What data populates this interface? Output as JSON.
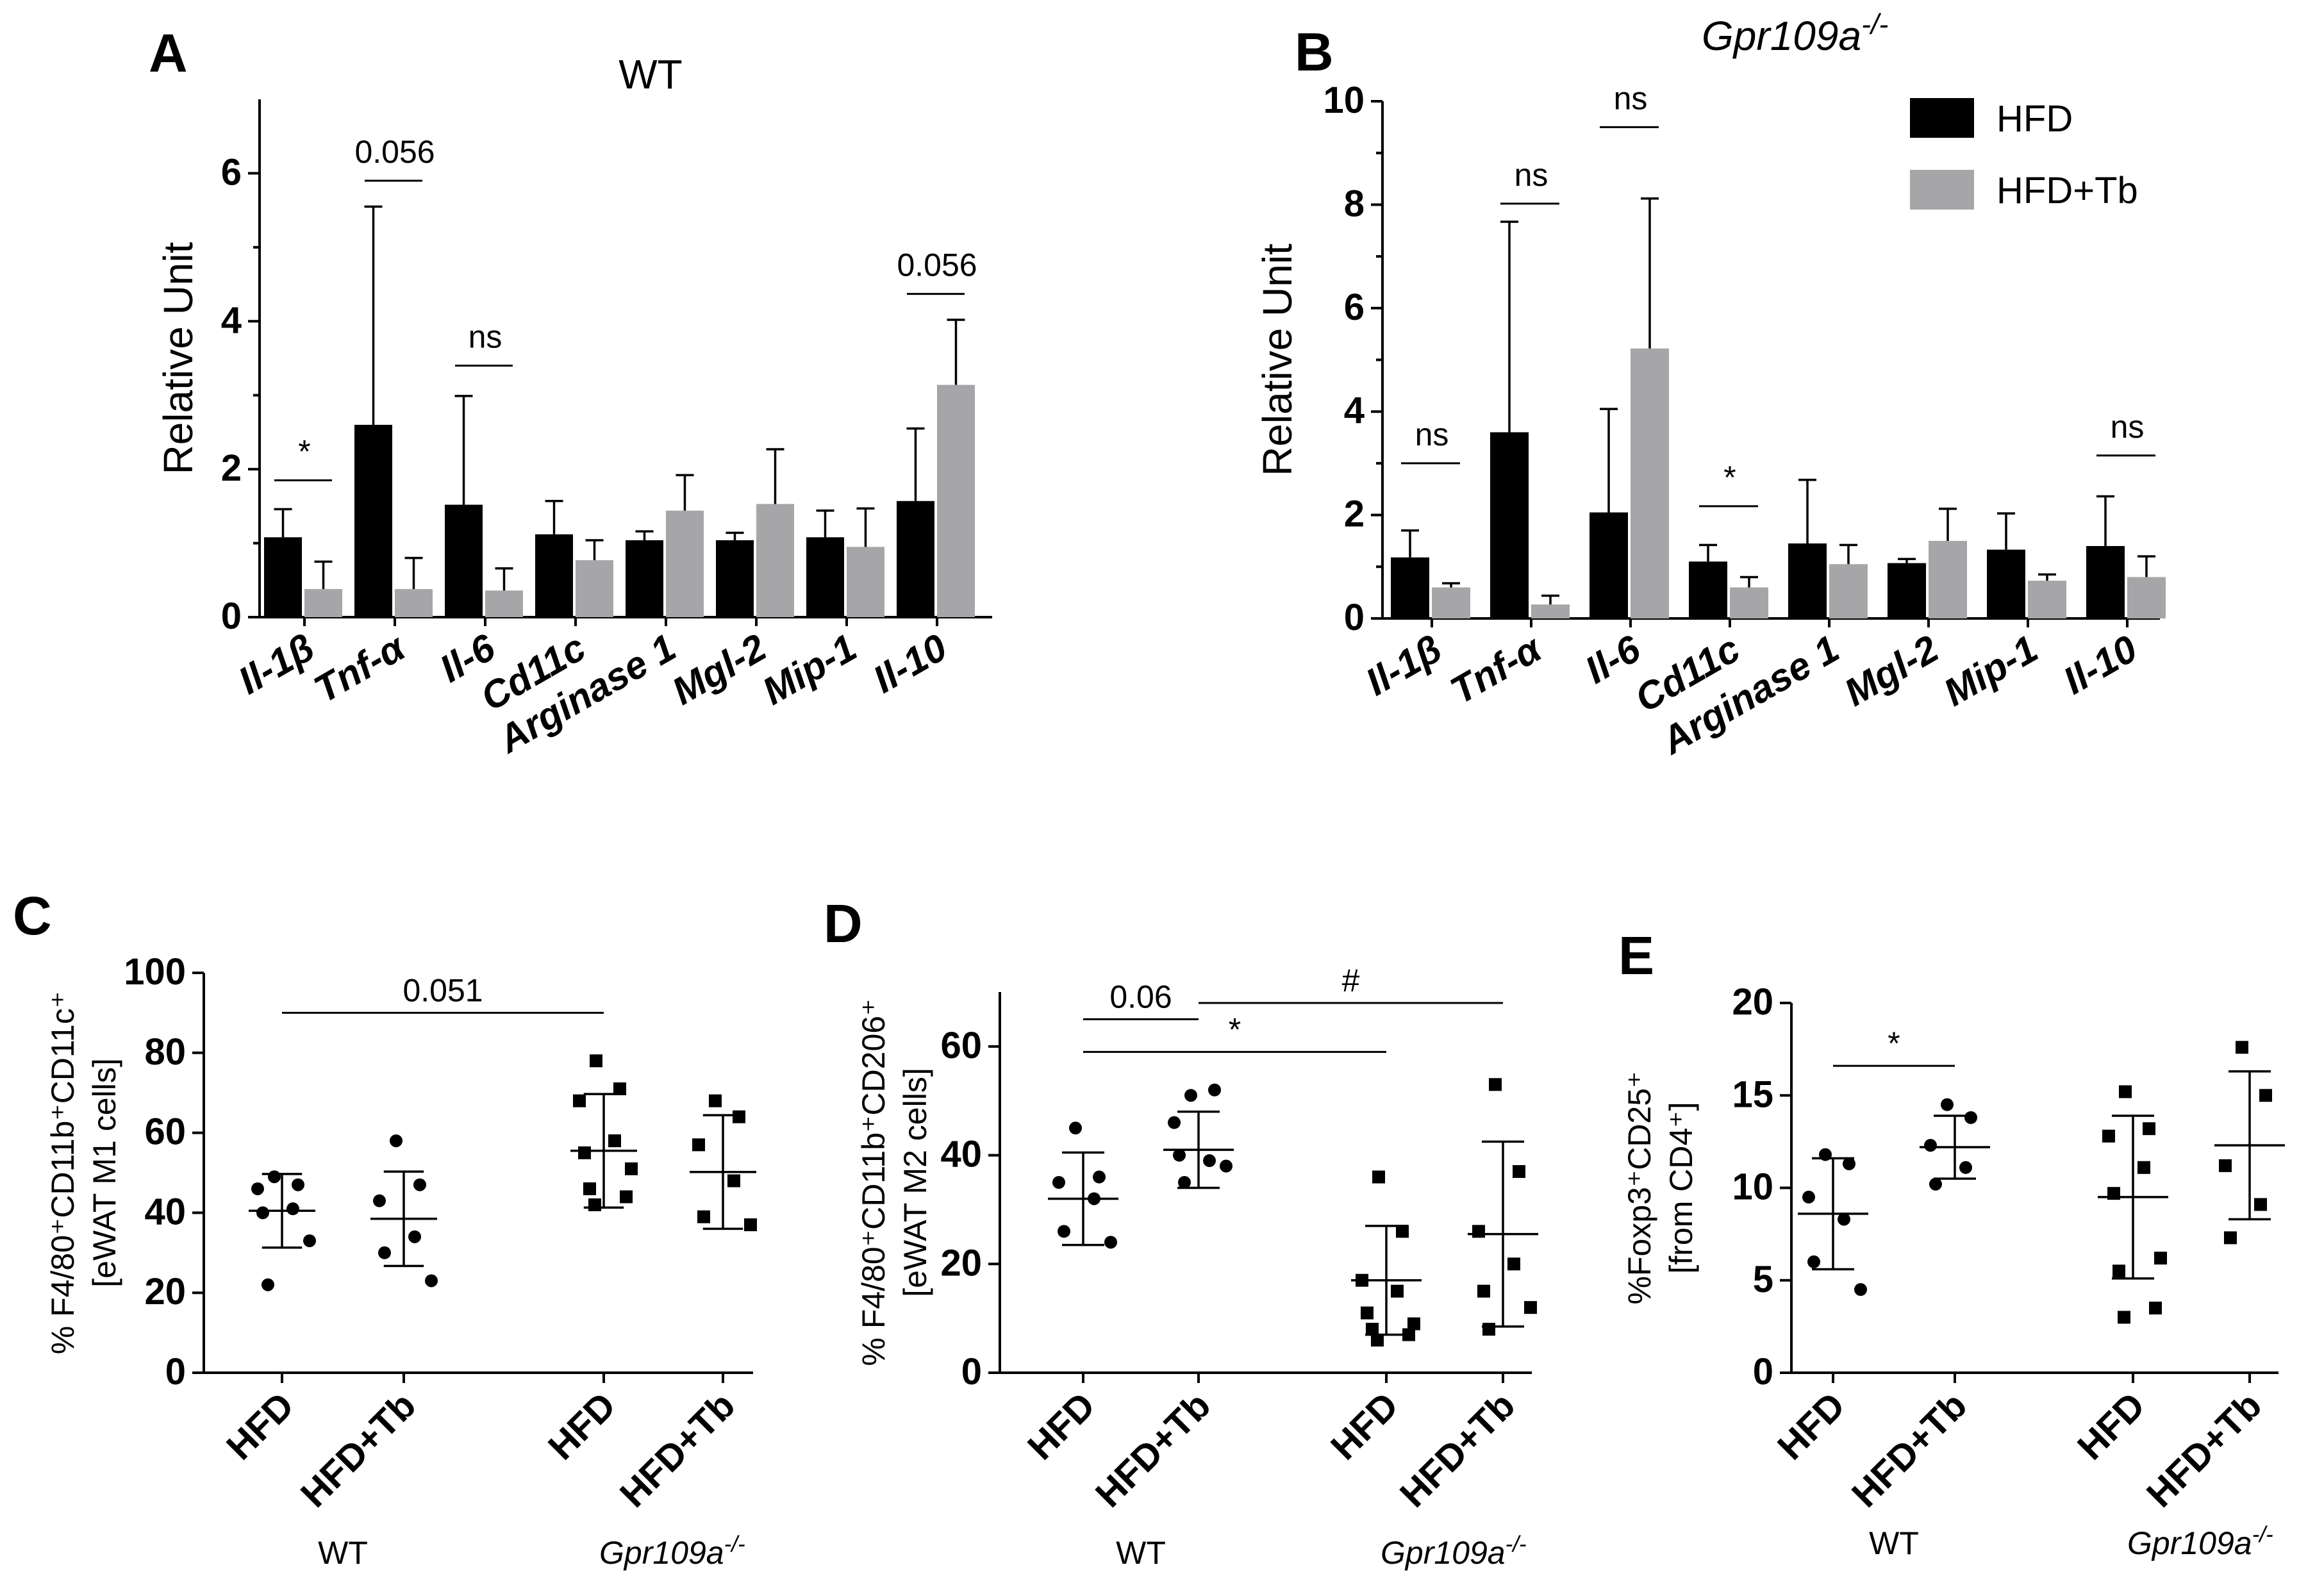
{
  "colors": {
    "hfd": "#000000",
    "hfd_tb": "#a6a6a8"
  },
  "chart_data": [
    {
      "panel": "A",
      "type": "bar",
      "title": "WT",
      "ylabel": "Relative Unit",
      "ylim": [
        0,
        7
      ],
      "yticks": [
        0,
        2,
        4,
        6
      ],
      "categories": [
        "Il-1β",
        "Tnf-α",
        "Il-6",
        "Cd11c",
        "Arginase 1",
        "Mgl-2",
        "Mip-1",
        "Il-10"
      ],
      "series": [
        {
          "name": "HFD",
          "values": [
            1.08,
            2.6,
            1.52,
            1.12,
            1.04,
            1.04,
            1.08,
            1.57
          ],
          "errors": [
            0.38,
            2.95,
            1.47,
            0.45,
            0.12,
            0.1,
            0.36,
            0.98
          ]
        },
        {
          "name": "HFD+Tb",
          "values": [
            0.38,
            0.38,
            0.36,
            0.77,
            1.44,
            1.53,
            0.95,
            3.14
          ],
          "errors": [
            0.37,
            0.42,
            0.3,
            0.27,
            0.48,
            0.74,
            0.52,
            0.88
          ]
        }
      ],
      "annotations": [
        {
          "category": 0,
          "label": "*",
          "y": 1.85
        },
        {
          "category": 1,
          "label": "0.056",
          "y": 5.9
        },
        {
          "category": 2,
          "label": "ns",
          "y": 3.4
        },
        {
          "category": 7,
          "label": "0.056",
          "y": 4.37
        }
      ]
    },
    {
      "panel": "B",
      "type": "bar",
      "title": "Gpr109a",
      "title_sup": "-/-",
      "ylabel": "Relative Unit",
      "ylim": [
        0,
        10
      ],
      "yticks": [
        0,
        2,
        4,
        6,
        8,
        10
      ],
      "categories": [
        "Il-1β",
        "Tnf-α",
        "Il-6",
        "Cd11c",
        "Arginase 1",
        "Mgl-2",
        "Mip-1",
        "Il-10"
      ],
      "series": [
        {
          "name": "HFD",
          "values": [
            1.18,
            3.6,
            2.05,
            1.1,
            1.45,
            1.07,
            1.33,
            1.4
          ],
          "errors": [
            0.52,
            4.07,
            2.0,
            0.32,
            1.23,
            0.08,
            0.7,
            0.96
          ]
        },
        {
          "name": "HFD+Tb",
          "values": [
            0.6,
            0.27,
            5.22,
            0.6,
            1.05,
            1.5,
            0.73,
            0.8
          ],
          "errors": [
            0.08,
            0.17,
            2.9,
            0.2,
            0.37,
            0.62,
            0.12,
            0.4
          ]
        }
      ],
      "annotations": [
        {
          "category": 0,
          "label": "ns",
          "y": 3.0
        },
        {
          "category": 1,
          "label": "ns",
          "y": 8.02
        },
        {
          "category": 2,
          "label": "ns",
          "y": 9.5
        },
        {
          "category": 3,
          "label": "*",
          "y": 2.17
        },
        {
          "category": 7,
          "label": "ns",
          "y": 3.15
        }
      ],
      "legend": {
        "position": "top-right",
        "entries": [
          "HFD",
          "HFD+Tb"
        ]
      }
    },
    {
      "panel": "C",
      "type": "scatter",
      "ylabel_line1": "% F4/80⁺CD11b⁺CD11c⁺",
      "ylabel_line2": "[eWAT M1 cells]",
      "ylim": [
        0,
        100
      ],
      "yticks": [
        0,
        20,
        40,
        60,
        80,
        100
      ],
      "groups": [
        {
          "label": "HFD",
          "group": "WT",
          "marker": "circle",
          "mean": 40.5,
          "sd": 9.2,
          "points": [
            49,
            47,
            46,
            41,
            40,
            33,
            22
          ]
        },
        {
          "label": "HFD+Tb",
          "group": "WT",
          "marker": "circle",
          "mean": 38.5,
          "sd": 11.8,
          "points": [
            58,
            47,
            43,
            34,
            30,
            23
          ]
        },
        {
          "label": "HFD",
          "group": "Gpr109a",
          "marker": "square",
          "mean": 55.5,
          "sd": 14.2,
          "points": [
            78,
            71,
            68,
            58,
            55,
            51,
            46,
            44,
            42
          ]
        },
        {
          "label": "HFD+Tb",
          "group": "Gpr109a",
          "marker": "square",
          "mean": 50.2,
          "sd": 14.2,
          "points": [
            68,
            64,
            57,
            48,
            39,
            37
          ]
        }
      ],
      "group_labels": [
        "WT",
        "Gpr109a"
      ],
      "group_sup": "-/-",
      "annotations": [
        {
          "from": 0,
          "to": 2,
          "label": "0.051",
          "y": 90
        }
      ]
    },
    {
      "panel": "D",
      "type": "scatter",
      "ylabel_line1": "% F4/80⁺CD11b⁺CD206⁺",
      "ylabel_line2": "[eWAT M2 cells]",
      "ylim": [
        0,
        70
      ],
      "yticks": [
        0,
        20,
        40,
        60
      ],
      "groups": [
        {
          "label": "HFD",
          "group": "WT",
          "marker": "circle",
          "mean": 32,
          "sd": 8.5,
          "points": [
            45,
            36,
            35,
            32,
            26,
            24
          ]
        },
        {
          "label": "HFD+Tb",
          "group": "WT",
          "marker": "circle",
          "mean": 41,
          "sd": 7,
          "points": [
            51,
            52,
            46,
            39,
            40,
            38,
            35
          ]
        },
        {
          "label": "HFD",
          "group": "Gpr109a",
          "marker": "square",
          "mean": 17,
          "sd": 10,
          "points": [
            36,
            26,
            17,
            15,
            11,
            9,
            8,
            7,
            6
          ]
        },
        {
          "label": "HFD+Tb",
          "group": "Gpr109a",
          "marker": "square",
          "mean": 25.5,
          "sd": 17,
          "points": [
            53,
            37,
            26,
            20,
            15,
            12,
            8
          ]
        }
      ],
      "group_labels": [
        "WT",
        "Gpr109a"
      ],
      "group_sup": "-/-",
      "annotations": [
        {
          "from": 0,
          "to": 1,
          "label": "0.06",
          "y": 65
        },
        {
          "from": 1,
          "to": 3,
          "label": "#",
          "y": 68
        },
        {
          "from": 0,
          "to": 2,
          "label": "*",
          "y": 59
        }
      ]
    },
    {
      "panel": "E",
      "type": "scatter",
      "ylabel_line1": "%Foxp3⁺CD25⁺",
      "ylabel_line2": "[from CD4⁺]",
      "ylim": [
        0,
        20
      ],
      "yticks": [
        0,
        5,
        10,
        15,
        20
      ],
      "groups": [
        {
          "label": "HFD",
          "group": "WT",
          "marker": "circle",
          "mean": 8.6,
          "sd": 3.0,
          "points": [
            11.8,
            11.3,
            9.5,
            8.3,
            6.0,
            4.5
          ]
        },
        {
          "label": "HFD+Tb",
          "group": "WT",
          "marker": "circle",
          "mean": 12.2,
          "sd": 1.7,
          "points": [
            14.5,
            13.8,
            12.3,
            11.1,
            10.2
          ]
        },
        {
          "label": "HFD",
          "group": "Gpr109a",
          "marker": "square",
          "mean": 9.5,
          "sd": 4.4,
          "points": [
            15.2,
            13.2,
            12.8,
            11.1,
            9.7,
            6.2,
            5.5,
            3.5,
            3.0
          ]
        },
        {
          "label": "HFD+Tb",
          "group": "Gpr109a",
          "marker": "square",
          "mean": 12.3,
          "sd": 4.0,
          "points": [
            17.6,
            15.0,
            11.2,
            9.1,
            7.3
          ]
        }
      ],
      "group_labels": [
        "WT",
        "Gpr109a"
      ],
      "group_sup": "-/-",
      "annotations": [
        {
          "from": 0,
          "to": 1,
          "label": "*",
          "y": 16.6
        }
      ]
    }
  ]
}
